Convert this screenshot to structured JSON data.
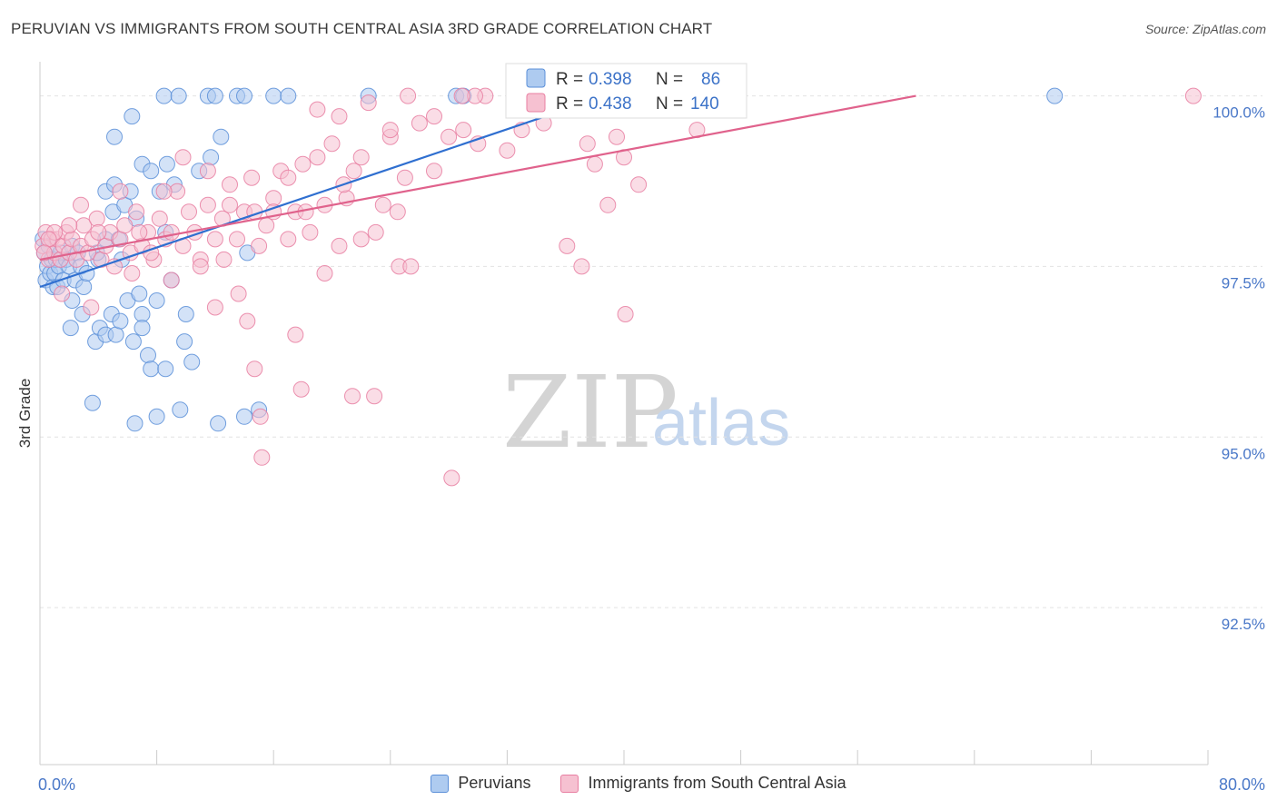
{
  "header": {
    "title": "PERUVIAN VS IMMIGRANTS FROM SOUTH CENTRAL ASIA 3RD GRADE CORRELATION CHART",
    "source": "Source: ZipAtlas.com"
  },
  "watermark": {
    "zip": "ZIP",
    "atlas": "atlas"
  },
  "chart_data": {
    "type": "scatter",
    "title": "PERUVIAN VS IMMIGRANTS FROM SOUTH CENTRAL ASIA 3RD GRADE CORRELATION CHART",
    "xlabel": "",
    "ylabel": "3rd Grade",
    "xlim": [
      0,
      80
    ],
    "ylim": [
      90.2,
      100.5
    ],
    "x_tick_labels": [
      {
        "value": 0,
        "label": "0.0%"
      },
      {
        "value": 80,
        "label": "80.0%"
      }
    ],
    "y_ticks": [
      {
        "value": 100,
        "label": "100.0%"
      },
      {
        "value": 97.5,
        "label": "97.5%"
      },
      {
        "value": 95,
        "label": "95.0%"
      },
      {
        "value": 92.5,
        "label": "92.5%"
      }
    ],
    "grid": true,
    "legend": {
      "position": "top-center",
      "entries": [
        {
          "r_label": "R =",
          "r_value": "0.398",
          "n_label": "N =",
          "n_value": "86"
        },
        {
          "r_label": "R =",
          "r_value": "0.438",
          "n_label": "N =",
          "n_value": "140"
        }
      ]
    },
    "series": [
      {
        "name": "Peruvians",
        "color": "#5b8fd8",
        "fill": "#aecbf0",
        "trend": {
          "x0": 0.0,
          "y0": 97.2,
          "x1": 36.0,
          "y1": 99.8
        },
        "points": [
          [
            0.2,
            97.9
          ],
          [
            0.3,
            97.7
          ],
          [
            0.4,
            97.3
          ],
          [
            0.5,
            97.5
          ],
          [
            0.6,
            97.8
          ],
          [
            0.7,
            97.4
          ],
          [
            0.8,
            97.6
          ],
          [
            0.9,
            97.2
          ],
          [
            1.0,
            97.4
          ],
          [
            1.1,
            97.6
          ],
          [
            1.2,
            97.2
          ],
          [
            1.3,
            97.5
          ],
          [
            1.4,
            97.7
          ],
          [
            1.6,
            97.3
          ],
          [
            1.8,
            97.6
          ],
          [
            2.0,
            97.5
          ],
          [
            2.2,
            97.8
          ],
          [
            2.4,
            97.3
          ],
          [
            2.6,
            97.7
          ],
          [
            2.8,
            97.5
          ],
          [
            3.0,
            97.2
          ],
          [
            3.2,
            97.4
          ],
          [
            2.2,
            97.0
          ],
          [
            2.1,
            96.6
          ],
          [
            2.9,
            96.8
          ],
          [
            3.8,
            96.4
          ],
          [
            4.1,
            96.6
          ],
          [
            4.5,
            96.5
          ],
          [
            4.9,
            96.8
          ],
          [
            5.2,
            96.5
          ],
          [
            5.5,
            96.7
          ],
          [
            6.0,
            97.0
          ],
          [
            6.4,
            96.4
          ],
          [
            6.8,
            97.1
          ],
          [
            7.0,
            96.8
          ],
          [
            7.4,
            96.2
          ],
          [
            7.6,
            96.0
          ],
          [
            8.0,
            97.0
          ],
          [
            8.6,
            96.0
          ],
          [
            9.0,
            97.3
          ],
          [
            9.9,
            96.4
          ],
          [
            10.0,
            96.8
          ],
          [
            10.4,
            96.1
          ],
          [
            7.0,
            96.6
          ],
          [
            3.6,
            95.5
          ],
          [
            4.0,
            97.6
          ],
          [
            4.5,
            97.9
          ],
          [
            5.0,
            98.3
          ],
          [
            5.4,
            97.9
          ],
          [
            5.8,
            98.4
          ],
          [
            6.2,
            98.6
          ],
          [
            6.6,
            98.2
          ],
          [
            7.0,
            99.0
          ],
          [
            7.6,
            98.9
          ],
          [
            8.2,
            98.6
          ],
          [
            8.7,
            99.0
          ],
          [
            9.2,
            98.7
          ],
          [
            4.5,
            98.6
          ],
          [
            5.1,
            98.7
          ],
          [
            5.1,
            99.4
          ],
          [
            5.6,
            97.6
          ],
          [
            6.3,
            99.7
          ],
          [
            3.9,
            97.7
          ],
          [
            8.6,
            98.0
          ],
          [
            10.9,
            98.9
          ],
          [
            11.7,
            99.1
          ],
          [
            12.4,
            99.4
          ],
          [
            14.2,
            97.7
          ],
          [
            15.0,
            95.4
          ],
          [
            14.0,
            95.3
          ],
          [
            12.2,
            95.2
          ],
          [
            9.6,
            95.4
          ],
          [
            8.0,
            95.3
          ],
          [
            6.5,
            95.2
          ],
          [
            8.5,
            100.0
          ],
          [
            9.5,
            100.0
          ],
          [
            11.5,
            100.0
          ],
          [
            12.0,
            100.0
          ],
          [
            13.5,
            100.0
          ],
          [
            14.0,
            100.0
          ],
          [
            16.0,
            100.0
          ],
          [
            17.0,
            100.0
          ],
          [
            22.5,
            100.0
          ],
          [
            28.5,
            100.0
          ],
          [
            29.0,
            100.0
          ],
          [
            69.5,
            100.0
          ]
        ]
      },
      {
        "name": "Immigrants from South Central Asia",
        "color": "#e87ea1",
        "fill": "#f6c1d1",
        "trend": {
          "x0": 0.0,
          "y0": 97.6,
          "x1": 60.0,
          "y1": 100.0
        },
        "points": [
          [
            0.2,
            97.8
          ],
          [
            0.4,
            98.0
          ],
          [
            0.6,
            97.6
          ],
          [
            0.8,
            97.9
          ],
          [
            1.0,
            97.7
          ],
          [
            1.2,
            97.9
          ],
          [
            1.4,
            97.6
          ],
          [
            1.6,
            97.8
          ],
          [
            1.8,
            98.0
          ],
          [
            2.0,
            97.7
          ],
          [
            2.2,
            97.9
          ],
          [
            2.5,
            97.6
          ],
          [
            2.8,
            97.8
          ],
          [
            3.0,
            98.1
          ],
          [
            3.3,
            97.7
          ],
          [
            3.6,
            97.9
          ],
          [
            3.9,
            98.2
          ],
          [
            4.2,
            97.6
          ],
          [
            4.5,
            97.8
          ],
          [
            4.8,
            98.0
          ],
          [
            5.1,
            97.5
          ],
          [
            5.5,
            97.9
          ],
          [
            5.8,
            98.1
          ],
          [
            6.2,
            97.7
          ],
          [
            6.6,
            98.3
          ],
          [
            7.0,
            97.8
          ],
          [
            7.4,
            98.0
          ],
          [
            7.8,
            97.6
          ],
          [
            8.2,
            98.2
          ],
          [
            8.6,
            97.9
          ],
          [
            9.0,
            98.0
          ],
          [
            9.4,
            98.6
          ],
          [
            9.8,
            97.8
          ],
          [
            10.2,
            98.3
          ],
          [
            10.6,
            98.0
          ],
          [
            11.0,
            97.6
          ],
          [
            11.5,
            98.4
          ],
          [
            12.0,
            97.9
          ],
          [
            12.5,
            98.2
          ],
          [
            13.0,
            98.7
          ],
          [
            13.5,
            97.9
          ],
          [
            14.0,
            98.3
          ],
          [
            14.5,
            98.8
          ],
          [
            15.0,
            97.8
          ],
          [
            15.5,
            98.1
          ],
          [
            16.0,
            98.5
          ],
          [
            16.5,
            98.9
          ],
          [
            17.0,
            97.9
          ],
          [
            17.5,
            98.3
          ],
          [
            18.0,
            99.0
          ],
          [
            18.5,
            98.0
          ],
          [
            19.0,
            99.1
          ],
          [
            19.5,
            98.4
          ],
          [
            20.0,
            99.3
          ],
          [
            20.5,
            97.8
          ],
          [
            21.0,
            98.5
          ],
          [
            21.5,
            98.9
          ],
          [
            22.0,
            99.1
          ],
          [
            23.0,
            98.0
          ],
          [
            24.0,
            99.4
          ],
          [
            24.5,
            98.3
          ],
          [
            25.0,
            98.8
          ],
          [
            26.0,
            99.6
          ],
          [
            27.0,
            98.9
          ],
          [
            28.0,
            99.4
          ],
          [
            29.0,
            99.5
          ],
          [
            30.0,
            99.3
          ],
          [
            32.0,
            99.2
          ],
          [
            33.0,
            99.5
          ],
          [
            34.5,
            99.6
          ],
          [
            35.0,
            99.8
          ],
          [
            36.0,
            99.9
          ],
          [
            37.5,
            99.3
          ],
          [
            38.0,
            99.0
          ],
          [
            39.5,
            99.4
          ],
          [
            40.0,
            99.1
          ],
          [
            41.0,
            98.7
          ],
          [
            1.5,
            97.1
          ],
          [
            3.5,
            96.9
          ],
          [
            6.3,
            97.4
          ],
          [
            7.6,
            97.7
          ],
          [
            9.0,
            97.3
          ],
          [
            11.0,
            97.5
          ],
          [
            12.0,
            96.9
          ],
          [
            13.6,
            97.1
          ],
          [
            14.2,
            96.7
          ],
          [
            17.5,
            96.5
          ],
          [
            19.5,
            97.4
          ],
          [
            24.6,
            97.5
          ],
          [
            37.1,
            97.5
          ],
          [
            36.1,
            97.8
          ],
          [
            25.4,
            97.5
          ],
          [
            22.0,
            97.9
          ],
          [
            15.1,
            95.3
          ],
          [
            14.7,
            96.0
          ],
          [
            15.2,
            94.7
          ],
          [
            17.9,
            95.7
          ],
          [
            21.4,
            95.6
          ],
          [
            22.9,
            95.6
          ],
          [
            28.2,
            94.4
          ],
          [
            40.1,
            96.8
          ],
          [
            38.9,
            98.4
          ],
          [
            39.1,
            100.0
          ],
          [
            34.3,
            100.0
          ],
          [
            40.0,
            100.0
          ],
          [
            41.5,
            100.0
          ],
          [
            42.0,
            100.0
          ],
          [
            43.0,
            100.0
          ],
          [
            44.0,
            100.0
          ],
          [
            45.0,
            99.5
          ],
          [
            46.0,
            100.0
          ],
          [
            79.0,
            100.0
          ],
          [
            30.5,
            100.0
          ],
          [
            29.8,
            100.0
          ],
          [
            28.9,
            100.0
          ],
          [
            25.2,
            100.0
          ],
          [
            24.0,
            99.5
          ],
          [
            27.0,
            99.7
          ],
          [
            19.0,
            99.8
          ],
          [
            20.5,
            99.7
          ],
          [
            22.5,
            99.9
          ],
          [
            16.0,
            98.3
          ],
          [
            17.0,
            98.8
          ],
          [
            13.0,
            98.4
          ],
          [
            11.5,
            98.9
          ],
          [
            9.8,
            99.1
          ],
          [
            8.5,
            98.6
          ],
          [
            6.8,
            98.0
          ],
          [
            5.5,
            98.6
          ],
          [
            4.0,
            98.0
          ],
          [
            2.8,
            98.4
          ],
          [
            2.0,
            98.1
          ],
          [
            1.0,
            98.0
          ],
          [
            0.6,
            97.9
          ],
          [
            0.3,
            97.7
          ],
          [
            12.6,
            97.6
          ],
          [
            14.7,
            98.3
          ],
          [
            18.2,
            98.3
          ],
          [
            20.8,
            98.7
          ],
          [
            23.5,
            98.4
          ]
        ]
      }
    ]
  },
  "bottom_legend": {
    "items": [
      {
        "label": "Peruvians"
      },
      {
        "label": "Immigrants from South Central Asia"
      }
    ]
  }
}
